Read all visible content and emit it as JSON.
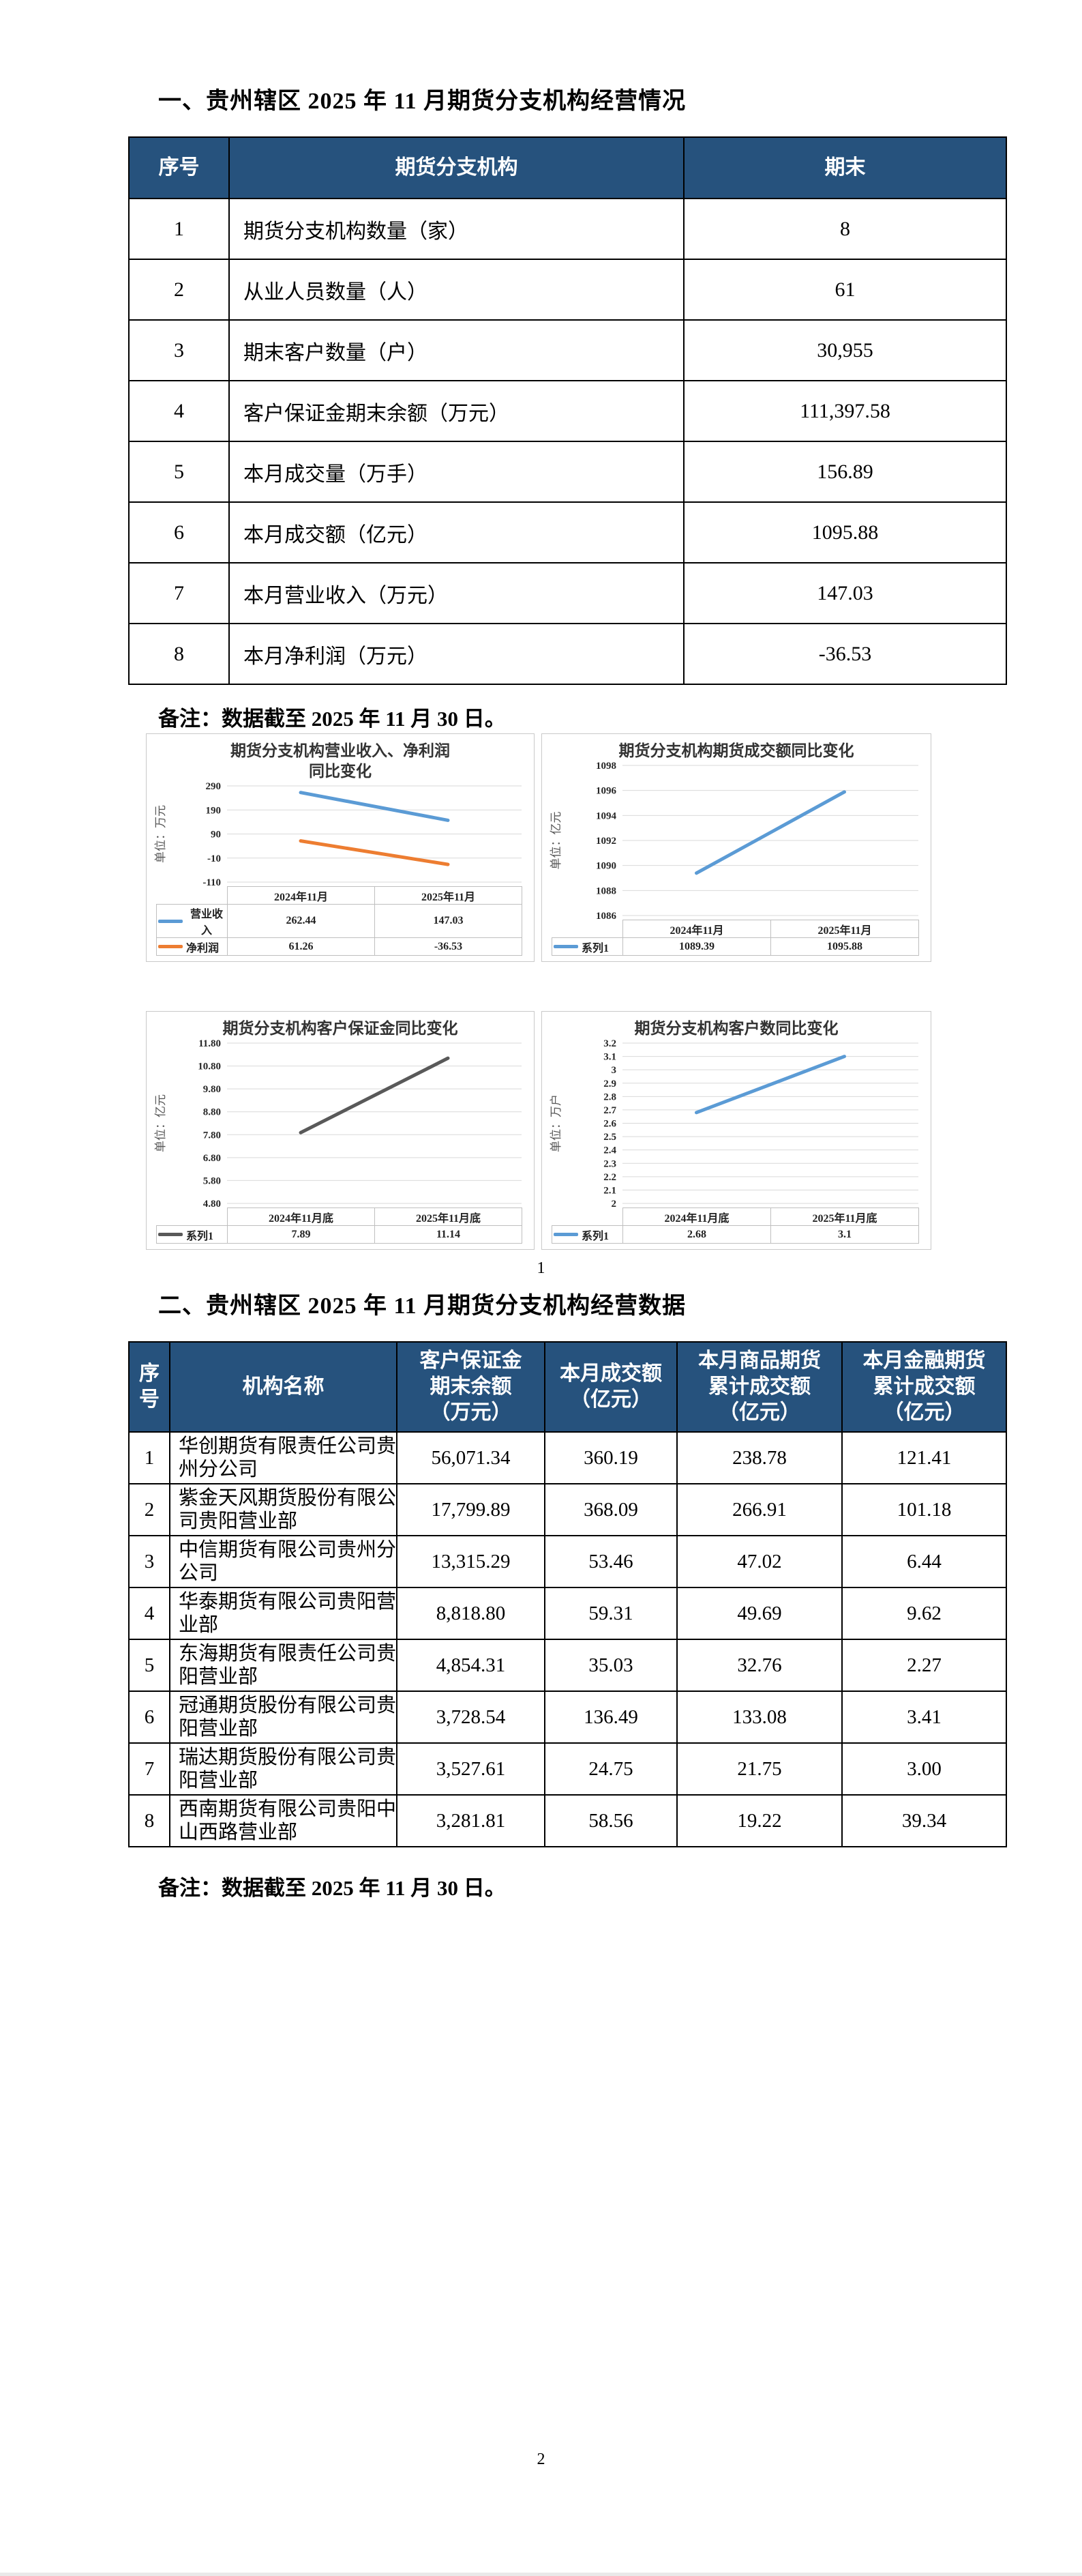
{
  "page": {
    "number1": "1",
    "number2": "2"
  },
  "colors": {
    "header_bg": "#26527D",
    "chart_blue": "#5B9BD5",
    "chart_orange": "#ED7D31",
    "chart_gray": "#595959",
    "gridline": "#D9D9D9",
    "chart_table_border": "#BFBFBF"
  },
  "section1": {
    "title": "一、贵州辖区 2025 年 11 月期货分支机构经营情况",
    "note": "备注：数据截至 2025 年 11 月 30 日。",
    "table": {
      "headers": [
        "序号",
        "期货分支机构",
        "期末"
      ],
      "rows": [
        {
          "no": "1",
          "label": "期货分支机构数量（家）",
          "value": "8"
        },
        {
          "no": "2",
          "label": "从业人员数量（人）",
          "value": "61"
        },
        {
          "no": "3",
          "label": "期末客户数量（户）",
          "value": "30,955"
        },
        {
          "no": "4",
          "label": "客户保证金期末余额（万元）",
          "value": "111,397.58"
        },
        {
          "no": "5",
          "label": "本月成交量（万手）",
          "value": "156.89"
        },
        {
          "no": "6",
          "label": "本月成交额（亿元）",
          "value": "1095.88"
        },
        {
          "no": "7",
          "label": "本月营业收入（万元）",
          "value": "147.03"
        },
        {
          "no": "8",
          "label": "本月净利润（万元）",
          "value": "-36.53"
        }
      ]
    }
  },
  "chart_data": [
    {
      "type": "line",
      "title": "期货分支机构营业收入、净利润\n同比变化",
      "unit": "单位：万元",
      "categories": [
        "2024年11月",
        "2025年11月"
      ],
      "y_ticks": [
        "290",
        "190",
        "90",
        "-10",
        "-110"
      ],
      "y_max": 290,
      "y_min": -110,
      "grid": true,
      "legend_position": "data-table-left",
      "series": [
        {
          "name": "营业收入",
          "color": "#5B9BD5",
          "values": [
            262.44,
            147.03
          ],
          "labels": [
            "262.44",
            "147.03"
          ]
        },
        {
          "name": "净利润",
          "color": "#ED7D31",
          "values": [
            61.26,
            -36.53
          ],
          "labels": [
            "61.26",
            "-36.53"
          ]
        }
      ]
    },
    {
      "type": "line",
      "title": "期货分支机构期货成交额同比变化",
      "unit": "单位：亿元",
      "categories": [
        "2024年11月",
        "2025年11月"
      ],
      "y_ticks": [
        "1098",
        "1096",
        "1094",
        "1092",
        "1090",
        "1088",
        "1086"
      ],
      "y_max": 1098,
      "y_min": 1086,
      "grid": true,
      "legend_position": "data-table-left",
      "series": [
        {
          "name": "系列1",
          "color": "#5B9BD5",
          "values": [
            1089.39,
            1095.88
          ],
          "labels": [
            "1089.39",
            "1095.88"
          ]
        }
      ]
    },
    {
      "type": "line",
      "title": "期货分支机构客户保证金同比变化",
      "unit": "单位：亿元",
      "categories": [
        "2024年11月底",
        "2025年11月底"
      ],
      "y_ticks": [
        "11.80",
        "10.80",
        "9.80",
        "8.80",
        "7.80",
        "6.80",
        "5.80",
        "4.80"
      ],
      "y_max": 11.8,
      "y_min": 4.8,
      "grid": true,
      "legend_position": "data-table-left",
      "series": [
        {
          "name": "系列1",
          "color": "#595959",
          "values": [
            7.89,
            11.14
          ],
          "labels": [
            "7.89",
            "11.14"
          ]
        }
      ]
    },
    {
      "type": "line",
      "title": "期货分支机构客户数同比变化",
      "unit": "单位：万户",
      "categories": [
        "2024年11月底",
        "2025年11月底"
      ],
      "y_ticks": [
        "3.2",
        "3.1",
        "3",
        "2.9",
        "2.8",
        "2.7",
        "2.6",
        "2.5",
        "2.4",
        "2.3",
        "2.2",
        "2.1",
        "2"
      ],
      "y_max": 3.2,
      "y_min": 2,
      "grid": true,
      "legend_position": "data-table-left",
      "series": [
        {
          "name": "系列1",
          "color": "#5B9BD5",
          "values": [
            2.68,
            3.1
          ],
          "labels": [
            "2.68",
            "3.1"
          ]
        }
      ]
    }
  ],
  "section2": {
    "title": "二、贵州辖区 2025 年 11 月期货分支机构经营数据",
    "note": "备注：数据截至 2025 年 11 月 30 日。",
    "table": {
      "headers": [
        "序\n号",
        "机构名称",
        "客户保证金\n期末余额\n（万元）",
        "本月成交额\n（亿元）",
        "本月商品期货\n累计成交额\n（亿元）",
        "本月金融期货\n累计成交额\n（亿元）"
      ],
      "rows": [
        {
          "no": "1",
          "name": "华创期货有限责任公司贵州分公司",
          "margin": "56,071.34",
          "turnover": "360.19",
          "commodity": "238.78",
          "financial": "121.41"
        },
        {
          "no": "2",
          "name": "紫金天风期货股份有限公司贵阳营业部",
          "margin": "17,799.89",
          "turnover": "368.09",
          "commodity": "266.91",
          "financial": "101.18"
        },
        {
          "no": "3",
          "name": "中信期货有限公司贵州分公司",
          "margin": "13,315.29",
          "turnover": "53.46",
          "commodity": "47.02",
          "financial": "6.44"
        },
        {
          "no": "4",
          "name": "华泰期货有限公司贵阳营业部",
          "margin": "8,818.80",
          "turnover": "59.31",
          "commodity": "49.69",
          "financial": "9.62"
        },
        {
          "no": "5",
          "name": "东海期货有限责任公司贵阳营业部",
          "margin": "4,854.31",
          "turnover": "35.03",
          "commodity": "32.76",
          "financial": "2.27"
        },
        {
          "no": "6",
          "name": "冠通期货股份有限公司贵阳营业部",
          "margin": "3,728.54",
          "turnover": "136.49",
          "commodity": "133.08",
          "financial": "3.41"
        },
        {
          "no": "7",
          "name": "瑞达期货股份有限公司贵阳营业部",
          "margin": "3,527.61",
          "turnover": "24.75",
          "commodity": "21.75",
          "financial": "3.00"
        },
        {
          "no": "8",
          "name": "西南期货有限公司贵阳中山西路营业部",
          "margin": "3,281.81",
          "turnover": "58.56",
          "commodity": "19.22",
          "financial": "39.34"
        }
      ]
    }
  }
}
